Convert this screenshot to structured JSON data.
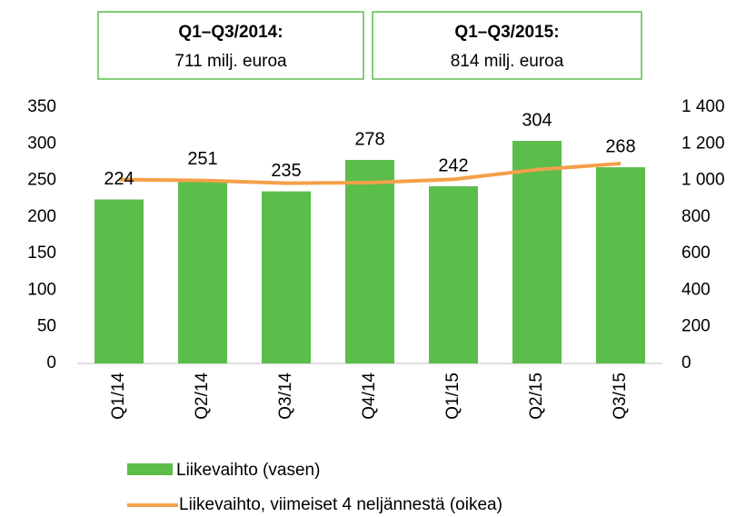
{
  "chart_data": {
    "type": "bar_line",
    "annotations": [
      {
        "title": "Q1–Q3/2014:",
        "text": "711 milj. euroa"
      },
      {
        "title": "Q1–Q3/2015:",
        "text": "814 milj. euroa"
      }
    ],
    "categories": [
      "Q1/14",
      "Q2/14",
      "Q3/14",
      "Q4/14",
      "Q1/15",
      "Q2/15",
      "Q3/15"
    ],
    "series": [
      {
        "name": "Liikevaihto (vasen)",
        "color": "#5bbd4a",
        "values": [
          224,
          251,
          235,
          278,
          242,
          304,
          268
        ]
      },
      {
        "name": "Liikevaihto, viimeiset 4 neljännestä (oikea)",
        "color": "#f4a04a",
        "axis": "y2",
        "values": [
          1005,
          1000,
          985,
          988,
          1006,
          1059,
          1092
        ]
      }
    ],
    "ylim": [
      0,
      350
    ],
    "yticks": [
      0,
      50,
      100,
      150,
      200,
      250,
      300,
      350
    ],
    "y2lim": [
      0,
      1400
    ],
    "y2ticks": [
      0,
      200,
      400,
      600,
      800,
      {
        "value": 1000,
        "label": "1 000"
      },
      {
        "value": 1200,
        "label": "1 200"
      },
      {
        "value": 1400,
        "label": "1 400"
      }
    ]
  }
}
